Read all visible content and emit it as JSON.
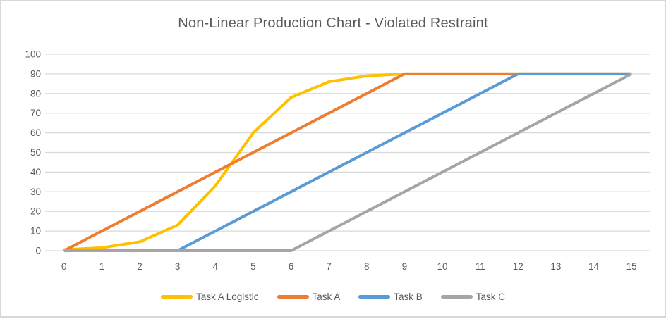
{
  "chart_data": {
    "type": "line",
    "title": "Non-Linear Production Chart - Violated Restraint",
    "x": [
      0,
      1,
      2,
      3,
      4,
      5,
      6,
      7,
      8,
      9,
      10,
      11,
      12,
      13,
      14,
      15
    ],
    "series": [
      {
        "name": "Task A Logistic",
        "color": "#FFC000",
        "values": [
          0.5,
          1.5,
          4.5,
          13,
          33,
          60,
          78,
          86,
          89,
          90,
          90,
          90,
          90,
          90,
          90,
          90
        ]
      },
      {
        "name": "Task A",
        "color": "#ED7D31",
        "values": [
          0,
          10,
          20,
          30,
          40,
          50,
          60,
          70,
          80,
          90,
          90,
          90,
          90,
          90,
          90,
          90
        ]
      },
      {
        "name": "Task B",
        "color": "#5B9BD5",
        "values": [
          0,
          0,
          0,
          0,
          10,
          20,
          30,
          40,
          50,
          60,
          70,
          80,
          90,
          90,
          90,
          90
        ]
      },
      {
        "name": "Task C",
        "color": "#A5A5A5",
        "values": [
          0,
          0,
          0,
          0,
          0,
          0,
          0,
          10,
          20,
          30,
          40,
          50,
          60,
          70,
          80,
          90
        ]
      }
    ],
    "ylim": [
      0,
      100
    ],
    "y_ticks": [
      0,
      10,
      20,
      30,
      40,
      50,
      60,
      70,
      80,
      90,
      100
    ],
    "xlabel": "",
    "ylabel": "",
    "grid": "horizontal",
    "legend_position": "bottom",
    "colors": {
      "gridline": "#D9D9D9",
      "axis_line": "#D9D9D9",
      "text": "#595959",
      "frame_border": "#D8D8D8",
      "background": "#FFFFFF"
    }
  }
}
